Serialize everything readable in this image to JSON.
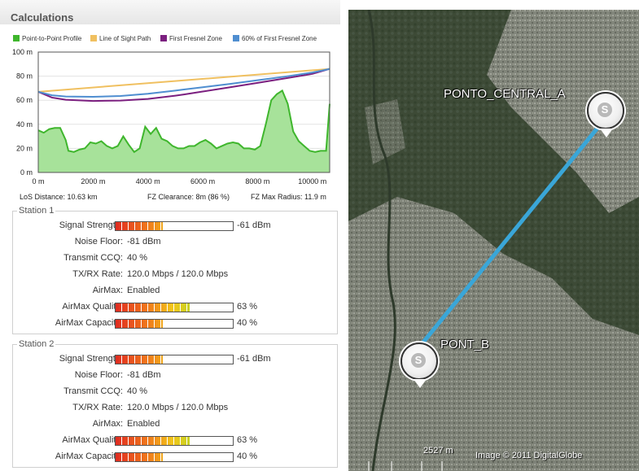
{
  "panel": {
    "title": "Calculations"
  },
  "legend": [
    {
      "label": "Point-to-Point Profile",
      "color": "#3fb62d"
    },
    {
      "label": "Line of Sight Path",
      "color": "#f0c060"
    },
    {
      "label": "First Fresnel Zone",
      "color": "#7b1f7f"
    },
    {
      "label": "60% of First Fresnel Zone",
      "color": "#4f8ed0"
    }
  ],
  "chart_data": {
    "type": "area",
    "x_unit": "m",
    "xlim": [
      0,
      10630
    ],
    "ylim": [
      0,
      100
    ],
    "x_ticks": [
      "0 m",
      "2000 m",
      "4000 m",
      "6000 m",
      "8000 m",
      "10000 m"
    ],
    "y_ticks": [
      "0 m",
      "20 m",
      "40 m",
      "60 m",
      "80 m",
      "100 m"
    ],
    "series": [
      {
        "name": "Point-to-Point Profile",
        "x": [
          0,
          200,
          400,
          600,
          800,
          1000,
          1100,
          1300,
          1500,
          1700,
          1900,
          2100,
          2300,
          2500,
          2700,
          2900,
          3100,
          3300,
          3500,
          3700,
          3900,
          4100,
          4300,
          4500,
          4700,
          4900,
          5100,
          5300,
          5500,
          5700,
          5900,
          6100,
          6300,
          6500,
          6700,
          6900,
          7100,
          7300,
          7500,
          7700,
          7900,
          8100,
          8300,
          8500,
          8700,
          8900,
          9100,
          9300,
          9500,
          9700,
          9900,
          10100,
          10300,
          10500,
          10630
        ],
        "y": [
          35,
          33,
          36,
          37,
          37,
          27,
          18,
          17,
          19,
          20,
          25,
          24,
          26,
          22,
          20,
          22,
          30,
          23,
          17,
          20,
          38,
          32,
          37,
          28,
          26,
          22,
          20,
          20,
          22,
          22,
          25,
          27,
          24,
          20,
          22,
          24,
          25,
          24,
          20,
          20,
          19,
          22,
          40,
          60,
          65,
          68,
          57,
          34,
          26,
          22,
          18,
          17,
          18,
          18,
          57
        ]
      },
      {
        "name": "Line of Sight Path",
        "x": [
          0,
          10630
        ],
        "y": [
          67,
          86
        ]
      },
      {
        "name": "First Fresnel Zone",
        "x": [
          0,
          500,
          1000,
          2000,
          3000,
          4000,
          5000,
          5315,
          6000,
          7000,
          8000,
          9000,
          10000,
          10630
        ],
        "y": [
          67,
          62.2,
          60.4,
          59.4,
          59.7,
          61.1,
          63.8,
          64.8,
          67.2,
          70.8,
          74.4,
          78.1,
          81.9,
          86
        ]
      },
      {
        "name": "60% of First Fresnel Zone",
        "x": [
          0,
          500,
          1000,
          2000,
          3000,
          4000,
          5000,
          5315,
          6000,
          7000,
          8000,
          9000,
          10000,
          10630
        ],
        "y": [
          67,
          64.1,
          63.1,
          62.8,
          63.5,
          65.4,
          68.0,
          68.9,
          70.8,
          73.6,
          76.6,
          79.6,
          83.0,
          86
        ]
      }
    ]
  },
  "summary": {
    "los_distance": "LoS Distance: 10.63 km",
    "fz_clearance": "FZ Clearance: 8m (86 %)",
    "fz_max_radius": "FZ Max Radius: 11.9 m"
  },
  "station1": {
    "title": "Station 1",
    "signal_label": "Signal Strength:",
    "signal_value": "-61 dBm",
    "signal_level": 0.4,
    "noise_label": "Noise Floor:",
    "noise_value": "-81 dBm",
    "ccq_label": "Transmit CCQ:",
    "ccq_value": "40 %",
    "rate_label": "TX/RX Rate:",
    "rate_value": "120.0 Mbps / 120.0 Mbps",
    "airmax_label": "AirMax:",
    "airmax_value": "Enabled",
    "quality_label": "AirMax Quality:",
    "quality_value": "63 %",
    "quality_level": 0.63,
    "capacity_label": "AirMax Capacity:",
    "capacity_value": "40 %",
    "capacity_level": 0.4
  },
  "station2": {
    "title": "Station 2",
    "signal_label": "Signal Strength:",
    "signal_value": "-61 dBm",
    "signal_level": 0.4,
    "noise_label": "Noise Floor:",
    "noise_value": "-81 dBm",
    "ccq_label": "Transmit CCQ:",
    "ccq_value": "40 %",
    "rate_label": "TX/RX Rate:",
    "rate_value": "120.0 Mbps / 120.0 Mbps",
    "airmax_label": "AirMax:",
    "airmax_value": "Enabled",
    "quality_label": "AirMax Quality:",
    "quality_value": "63 %",
    "quality_level": 0.63,
    "capacity_label": "AirMax Capacity:",
    "capacity_value": "40 %",
    "capacity_level": 0.4
  },
  "map": {
    "site_a": "PONTO_CENTRAL_A",
    "site_b": "PONT_B",
    "scale": "2527 m",
    "credit": "Image © 2011 DigitalGlobe",
    "link_color": "#3aa6d8"
  }
}
